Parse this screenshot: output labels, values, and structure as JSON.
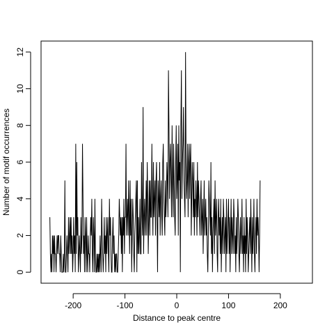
{
  "chart_data": {
    "type": "line",
    "title": "",
    "xlabel": "Distance to peak centre",
    "ylabel": "Number of motif occurrences",
    "xlim": [
      -262,
      262
    ],
    "ylim": [
      -0.6,
      12.6
    ],
    "xticks": [
      -200,
      -100,
      0,
      100,
      200
    ],
    "xtick_labels": [
      "-200",
      "-100",
      "0",
      "100",
      "200"
    ],
    "yticks": [
      0,
      2,
      4,
      6,
      8,
      10,
      12
    ],
    "ytick_labels": [
      "0",
      "2",
      "4",
      "6",
      "8",
      "10",
      "12"
    ],
    "grid": false,
    "line_color": "#000000",
    "x_start": -245,
    "x_step": 1,
    "values": [
      3,
      1,
      0,
      1,
      0,
      2,
      1,
      2,
      0,
      2,
      1,
      1,
      0,
      1,
      2,
      1,
      2,
      2,
      1,
      1,
      0,
      2,
      1,
      0,
      0,
      0,
      1,
      0,
      1,
      5,
      0,
      0,
      1,
      2,
      1,
      0,
      3,
      1,
      2,
      3,
      1,
      3,
      1,
      2,
      0,
      1,
      3,
      1,
      2,
      0,
      7,
      1,
      6,
      2,
      3,
      0,
      1,
      2,
      1,
      0,
      3,
      1,
      2,
      7,
      4,
      1,
      2,
      0,
      3,
      2,
      0,
      3,
      1,
      0,
      2,
      1,
      1,
      0,
      2,
      3,
      2,
      4,
      1,
      0,
      3,
      2,
      0,
      4,
      1,
      0,
      0,
      1,
      0,
      1,
      0,
      1,
      0,
      2,
      1,
      0,
      4,
      2,
      1,
      0,
      1,
      3,
      1,
      2,
      0,
      3,
      1,
      2,
      3,
      1,
      0,
      4,
      2,
      3,
      1,
      0,
      0,
      2,
      3,
      1,
      2,
      0,
      1,
      0,
      1,
      1,
      0,
      0,
      1,
      2,
      4,
      3,
      2,
      3,
      1,
      3,
      0,
      3,
      2,
      4,
      1,
      3,
      3,
      7,
      2,
      3,
      4,
      2,
      5,
      3,
      1,
      5,
      2,
      4,
      0,
      2,
      4,
      3,
      1,
      0,
      2,
      3,
      4,
      5,
      0,
      5,
      1,
      3,
      1,
      2,
      4,
      1,
      1,
      6,
      3,
      2,
      9,
      1,
      3,
      4,
      2,
      3,
      5,
      2,
      6,
      4,
      1,
      3,
      5,
      2,
      5,
      3,
      3,
      7,
      4,
      2,
      6,
      3,
      4,
      5,
      2,
      5,
      6,
      3,
      0,
      5,
      4,
      3,
      6,
      2,
      4,
      5,
      3,
      2,
      6,
      7,
      4,
      3,
      2,
      5,
      3,
      4,
      6,
      5,
      3,
      11,
      8,
      4,
      6,
      7,
      5,
      3,
      8,
      5,
      3,
      7,
      5,
      3,
      2,
      6,
      8,
      4,
      5,
      7,
      2,
      8,
      5,
      6,
      0,
      8,
      11,
      4,
      6,
      7,
      9,
      5,
      4,
      3,
      12,
      6,
      4,
      5,
      7,
      3,
      6,
      7,
      4,
      6,
      7,
      2,
      4,
      6,
      5,
      3,
      6,
      2,
      4,
      3,
      5,
      4,
      2,
      6,
      3,
      5,
      4,
      3,
      2,
      4,
      5,
      2,
      3,
      4,
      1,
      3,
      5,
      2,
      3,
      4,
      2,
      3,
      1,
      0,
      2,
      5,
      4,
      3,
      2,
      6,
      1,
      3,
      0,
      2,
      3,
      4,
      1,
      5,
      2,
      3,
      4,
      1,
      0,
      3,
      4,
      2,
      3,
      1,
      4,
      0,
      2,
      3,
      1,
      4,
      3,
      1,
      2,
      3,
      0,
      4,
      1,
      2,
      3,
      4,
      1,
      3,
      0,
      2,
      4,
      1,
      3,
      2,
      1,
      4,
      3,
      1,
      2,
      0,
      3,
      1,
      2,
      4,
      3,
      1,
      0,
      2,
      3,
      1,
      2,
      4,
      1,
      2,
      0,
      3,
      1,
      2,
      0,
      4,
      1,
      3,
      2,
      0,
      1,
      2,
      3,
      1,
      4,
      2,
      0,
      3,
      1,
      2,
      4,
      1,
      0,
      2,
      3,
      1,
      4,
      2,
      3,
      2,
      0,
      2,
      5
    ]
  }
}
